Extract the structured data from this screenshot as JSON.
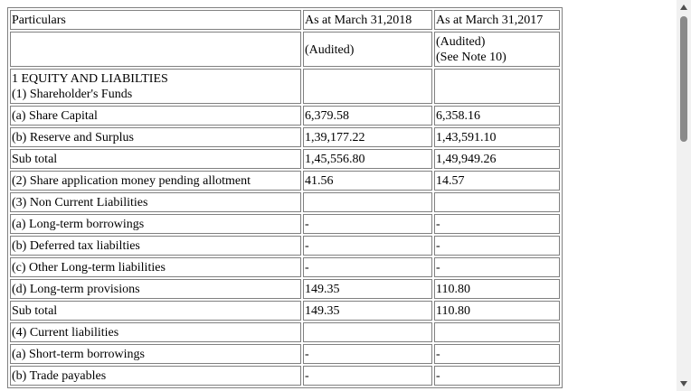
{
  "table": {
    "header": {
      "particulars": "Particulars",
      "col2017_18": "As at March 31,2018",
      "col2016_17": "As at March 31,2017"
    },
    "audit_row": {
      "col2017_18": "(Audited)",
      "col2016_17_line1": "(Audited)",
      "col2016_17_line2": "(See Note 10)"
    },
    "section_title": "1 EQUITY AND LIABILTIES",
    "section_sub": "(1) Shareholder's Funds",
    "rows": [
      {
        "label": "(a) Share Capital",
        "v2018": "6,379.58",
        "v2017": "6,358.16"
      },
      {
        "label": "(b) Reserve and Surplus",
        "v2018": "1,39,177.22",
        "v2017": "1,43,591.10"
      },
      {
        "label": "Sub total",
        "v2018": "1,45,556.80",
        "v2017": "1,49,949.26"
      },
      {
        "label": "(2) Share application money pending allotment",
        "v2018": "41.56",
        "v2017": "14.57"
      },
      {
        "label": "(3) Non Current Liabilities",
        "v2018": "",
        "v2017": ""
      },
      {
        "label": "(a) Long-term borrowings",
        "v2018": "-",
        "v2017": "-"
      },
      {
        "label": "(b) Deferred tax liabilties",
        "v2018": "-",
        "v2017": "-"
      },
      {
        "label": "(c) Other Long-term liabilities",
        "v2018": "-",
        "v2017": "-"
      },
      {
        "label": "(d) Long-term provisions",
        "v2018": "149.35",
        "v2017": "110.80"
      },
      {
        "label": "Sub total",
        "v2018": "149.35",
        "v2017": "110.80"
      },
      {
        "label": "(4) Current liabilities",
        "v2018": "",
        "v2017": ""
      },
      {
        "label": "(a) Short-term borrowings",
        "v2018": "-",
        "v2017": "-"
      },
      {
        "label": "(b) Trade payables",
        "v2018": "-",
        "v2017": "-"
      }
    ]
  },
  "scrollbar": {
    "up_icon": "triangle-up-icon",
    "down_icon": "triangle-down-icon",
    "scroll_position_fraction": 0.0,
    "visible_fraction": 0.35
  }
}
